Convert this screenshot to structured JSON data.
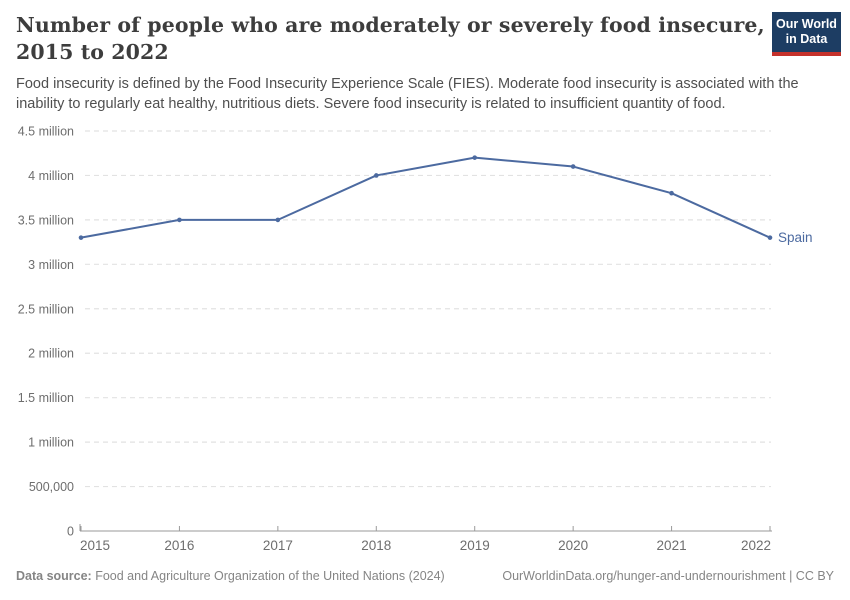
{
  "header": {
    "title": "Number of people who are moderately or severely food insecure, 2015 to 2022",
    "subtitle": "Food insecurity is defined by the Food Insecurity Experience Scale (FIES). Moderate food insecurity is associated with the inability to regularly eat healthy, nutritious diets. Severe food insecurity is related to insufficient quantity of food.",
    "logo": {
      "line1": "Our World",
      "line2": "in Data"
    }
  },
  "colors": {
    "brand_navy": "#1d3d63",
    "brand_red": "#c5312b",
    "series_blue": "#4C6AA0"
  },
  "chart_data": {
    "type": "line",
    "title": "Number of people who are moderately or severely food insecure, 2015 to 2022",
    "xlabel": "",
    "ylabel": "",
    "x": [
      2015,
      2016,
      2017,
      2018,
      2019,
      2020,
      2021,
      2022
    ],
    "series": [
      {
        "name": "Spain",
        "color": "#4C6AA0",
        "values": [
          3300000,
          3500000,
          3500000,
          4000000,
          4200000,
          4100000,
          3800000,
          3300000
        ]
      }
    ],
    "ylim": [
      0,
      4500000
    ],
    "yticks": [
      {
        "value": 0,
        "label": "0"
      },
      {
        "value": 500000,
        "label": "500,000"
      },
      {
        "value": 1000000,
        "label": "1 million"
      },
      {
        "value": 1500000,
        "label": "1.5 million"
      },
      {
        "value": 2000000,
        "label": "2 million"
      },
      {
        "value": 2500000,
        "label": "2.5 million"
      },
      {
        "value": 3000000,
        "label": "3 million"
      },
      {
        "value": 3500000,
        "label": "3.5 million"
      },
      {
        "value": 4000000,
        "label": "4 million"
      },
      {
        "value": 4500000,
        "label": "4.5 million"
      }
    ],
    "grid": "horizontal-dashed",
    "legend": "end-of-line-label"
  },
  "footer": {
    "datasource_label": "Data source:",
    "datasource_text": " Food and Agriculture Organization of the United Nations (2024)",
    "url_text": "OurWorldinData.org/hunger-and-undernourishment | CC BY"
  }
}
